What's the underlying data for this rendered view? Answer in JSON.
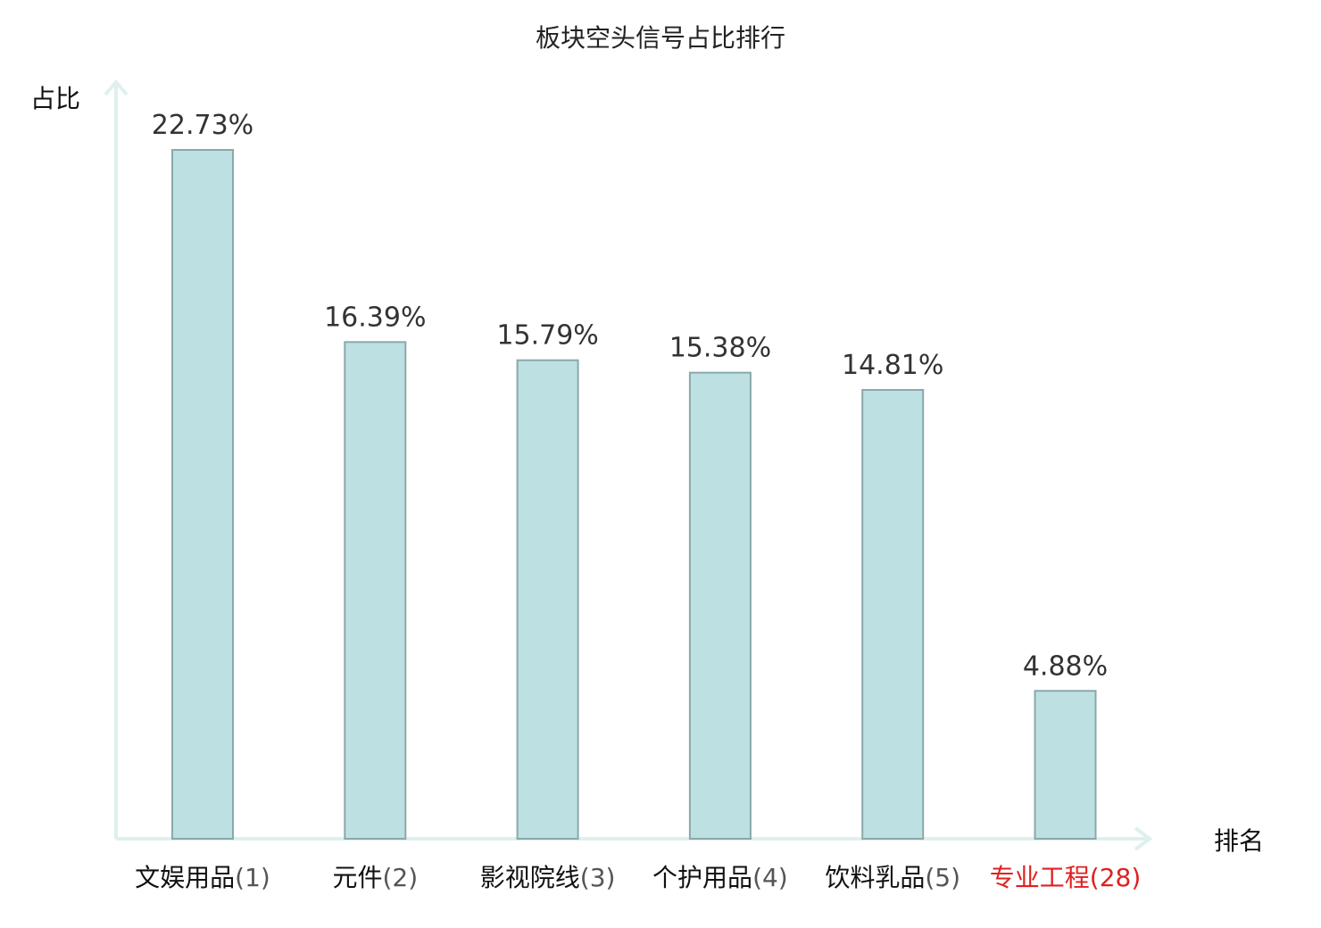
{
  "chart_data": {
    "type": "bar",
    "title": "板块空头信号占比排行",
    "ylabel": "占比",
    "xlabel": "排名",
    "categories": [
      {
        "name": "文娱用品",
        "rank": "(1)",
        "highlight": false
      },
      {
        "name": "元件",
        "rank": "(2)",
        "highlight": false
      },
      {
        "name": "影视院线",
        "rank": "(3)",
        "highlight": false
      },
      {
        "name": "个护用品",
        "rank": "(4)",
        "highlight": false
      },
      {
        "name": "饮料乳品",
        "rank": "(5)",
        "highlight": false
      },
      {
        "name": "专业工程",
        "rank": "(28)",
        "highlight": true
      }
    ],
    "values": [
      22.73,
      16.39,
      15.79,
      15.38,
      14.81,
      4.88
    ],
    "value_labels": [
      "22.73%",
      "16.39%",
      "15.79%",
      "15.38%",
      "14.81%",
      "4.88%"
    ],
    "ylim": [
      0,
      25
    ],
    "grid": false,
    "colors": {
      "bar_fill": "#bde0e2",
      "bar_stroke": "#8aa8aa",
      "axis": "#dff0ee",
      "highlight": "#e02020",
      "rank_text": "#555555"
    }
  }
}
